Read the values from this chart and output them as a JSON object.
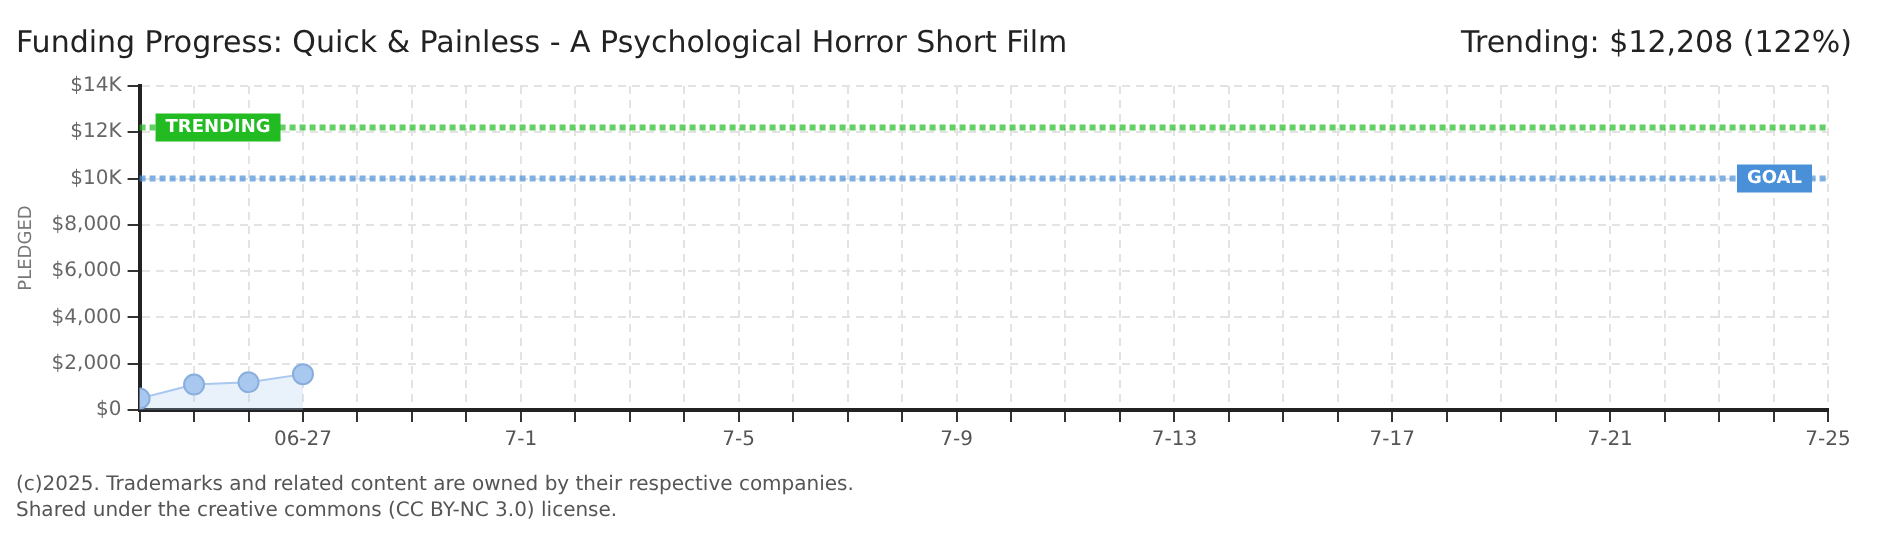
{
  "chart_data": {
    "type": "area",
    "title": "Funding Progress: Quick & Painless - A Psychological Horror Short Film",
    "subtitle": "Trending: $12,208 (122%)",
    "ylabel": "PLEDGED",
    "annotations": [
      "(c)2025. Trademarks and related content are owned by their respective companies.",
      "Shared under the creative commons (CC BY-NC 3.0) license."
    ],
    "x": [
      "2025-06-24",
      "2025-06-25",
      "2025-06-26",
      "2025-06-27"
    ],
    "series": [
      {
        "color": "#a8c8f0",
        "values": [
          500,
          1100,
          1200,
          1550
        ]
      }
    ],
    "xlim": [
      "2025-06-24",
      "2025-07-25"
    ],
    "xticks": [
      {
        "value": "2025-06-24",
        "label": null
      },
      {
        "value": "2025-06-25",
        "label": null
      },
      {
        "value": "2025-06-26",
        "label": null
      },
      {
        "value": "2025-06-27",
        "label": "06-27"
      },
      {
        "value": "2025-06-28",
        "label": null
      },
      {
        "value": "2025-06-29",
        "label": null
      },
      {
        "value": "2025-06-30",
        "label": null
      },
      {
        "value": "2025-07-01",
        "label": "7-1"
      },
      {
        "value": "2025-07-02",
        "label": null
      },
      {
        "value": "2025-07-03",
        "label": null
      },
      {
        "value": "2025-07-04",
        "label": null
      },
      {
        "value": "2025-07-05",
        "label": "7-5"
      },
      {
        "value": "2025-07-06",
        "label": null
      },
      {
        "value": "2025-07-07",
        "label": null
      },
      {
        "value": "2025-07-08",
        "label": null
      },
      {
        "value": "2025-07-09",
        "label": "7-9"
      },
      {
        "value": "2025-07-10",
        "label": null
      },
      {
        "value": "2025-07-11",
        "label": null
      },
      {
        "value": "2025-07-12",
        "label": null
      },
      {
        "value": "2025-07-13",
        "label": "7-13"
      },
      {
        "value": "2025-07-14",
        "label": null
      },
      {
        "value": "2025-07-15",
        "label": null
      },
      {
        "value": "2025-07-16",
        "label": null
      },
      {
        "value": "2025-07-17",
        "label": "7-17"
      },
      {
        "value": "2025-07-18",
        "label": null
      },
      {
        "value": "2025-07-19",
        "label": null
      },
      {
        "value": "2025-07-20",
        "label": null
      },
      {
        "value": "2025-07-21",
        "label": "7-21"
      },
      {
        "value": "2025-07-22",
        "label": null
      },
      {
        "value": "2025-07-23",
        "label": null
      },
      {
        "value": "2025-07-24",
        "label": null
      },
      {
        "value": "2025-07-25",
        "label": "7-25"
      }
    ],
    "ylim": [
      0,
      14000
    ],
    "yticks": [
      {
        "value": 0,
        "label": "$0"
      },
      {
        "value": 2000,
        "label": "$2,000"
      },
      {
        "value": 4000,
        "label": "$4,000"
      },
      {
        "value": 6000,
        "label": "$6,000"
      },
      {
        "value": 8000,
        "label": "$8,000"
      },
      {
        "value": 10000,
        "label": "$10K"
      },
      {
        "value": 12000,
        "label": "$12K"
      },
      {
        "value": 14000,
        "label": "$14K"
      }
    ],
    "ref_lines": [
      {
        "axis": "y",
        "value": 12208,
        "label": "TRENDING",
        "color": "#22bb22",
        "line_style": "dotted"
      },
      {
        "axis": "y",
        "value": 10000,
        "label": "GOAL",
        "color": "#4a90d9",
        "line_style": "dotted"
      }
    ],
    "grid": true,
    "legend": false,
    "marker": "circle"
  }
}
